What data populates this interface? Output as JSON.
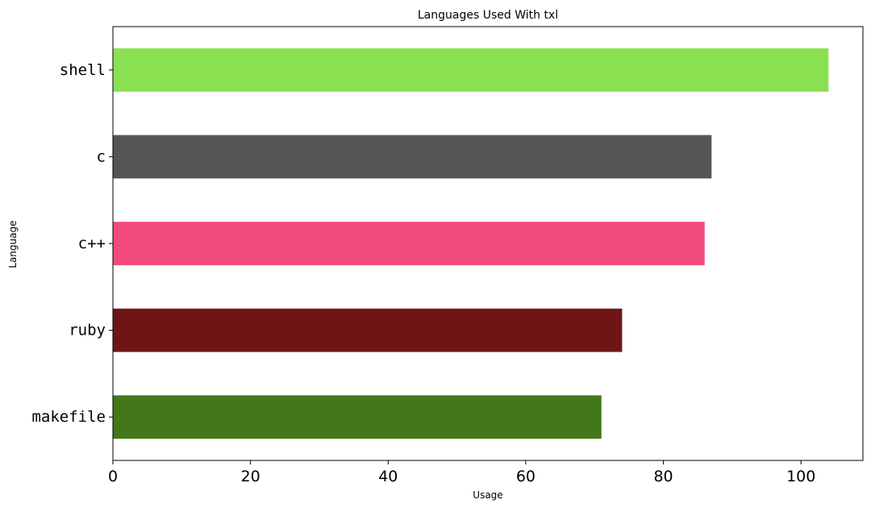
{
  "chart_data": {
    "type": "bar",
    "orientation": "horizontal",
    "title": "Languages Used With txl",
    "xlabel": "Usage",
    "ylabel": "Language",
    "categories": [
      "shell",
      "c",
      "c++",
      "ruby",
      "makefile"
    ],
    "values": [
      104,
      87,
      86,
      74,
      71
    ],
    "colors": [
      "#89e051",
      "#555555",
      "#f34b7d",
      "#701516",
      "#427819"
    ],
    "xlim": [
      0,
      109
    ],
    "xticks": [
      0,
      20,
      40,
      60,
      80,
      100
    ],
    "xtick_labels": [
      "0",
      "20",
      "40",
      "60",
      "80",
      "100"
    ],
    "grid": false,
    "legend": "none"
  }
}
